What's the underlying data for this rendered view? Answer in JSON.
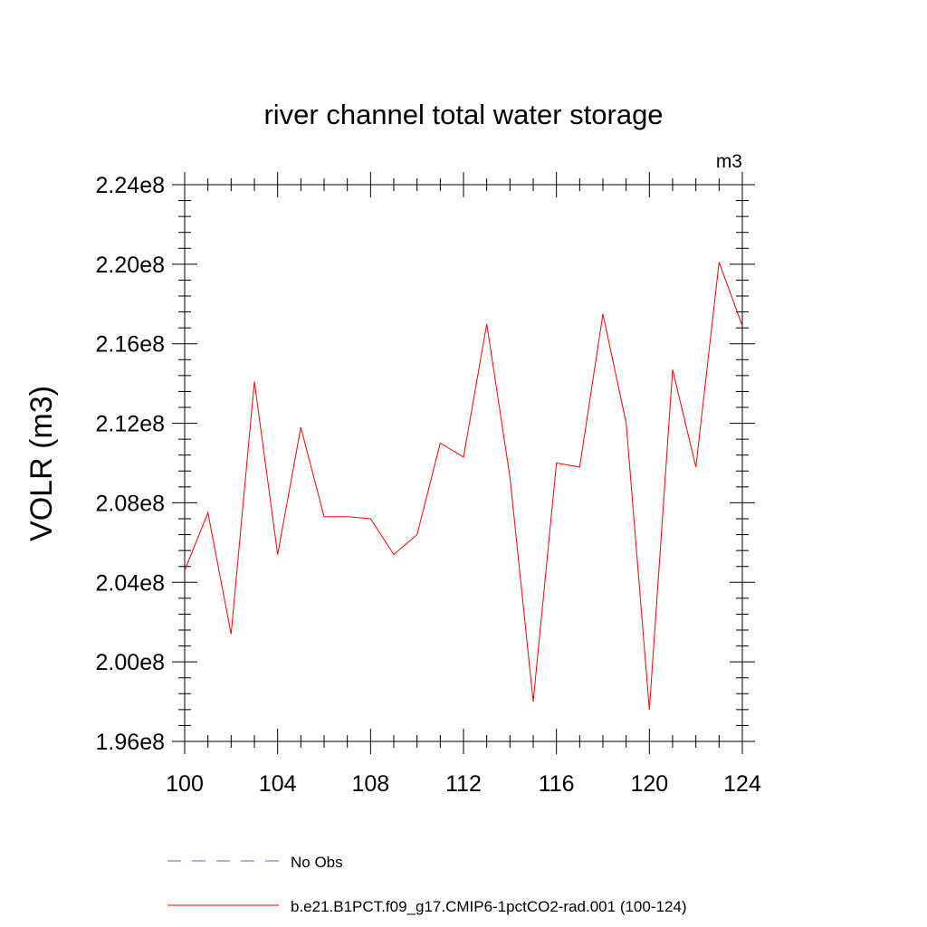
{
  "chart_data": {
    "type": "line",
    "title": "river channel total water storage",
    "units_label": "m3",
    "ylabel": "VOLR  (m3)",
    "xlabel": "",
    "xlim": [
      100,
      124
    ],
    "ylim": [
      196000000,
      224000000
    ],
    "x_ticks": [
      100,
      104,
      108,
      112,
      116,
      120,
      124
    ],
    "x_tick_labels": [
      "100",
      "104",
      "108",
      "112",
      "116",
      "120",
      "124"
    ],
    "y_ticks": [
      196000000,
      200000000,
      204000000,
      208000000,
      212000000,
      216000000,
      220000000,
      224000000
    ],
    "y_tick_labels": [
      "1.96e8",
      "2.00e8",
      "2.04e8",
      "2.08e8",
      "2.12e8",
      "2.16e8",
      "2.20e8",
      "2.24e8"
    ],
    "grid": false,
    "legend_position": "bottom",
    "series": [
      {
        "name": "b.e21.B1PCT.f09_g17.CMIP6-1pctCO2-rad.001 (100-124)",
        "color": "#ff0000",
        "style": "solid",
        "x": [
          100,
          101,
          102,
          103,
          104,
          105,
          106,
          107,
          108,
          109,
          110,
          111,
          112,
          113,
          114,
          115,
          116,
          117,
          118,
          119,
          120,
          121,
          122,
          123,
          124
        ],
        "values": [
          204600000,
          207500000,
          201400000,
          214100000,
          205400000,
          211800000,
          207300000,
          207300000,
          207200000,
          205400000,
          206400000,
          211000000,
          210300000,
          217000000,
          209300000,
          198000000,
          210000000,
          209800000,
          217500000,
          212000000,
          197600000,
          214700000,
          209800000,
          220100000,
          216900000
        ]
      }
    ],
    "legend": [
      {
        "label": "No Obs",
        "color": "#6a5acd",
        "style": "dashed"
      },
      {
        "label": "b.e21.B1PCT.f09_g17.CMIP6-1pctCO2-rad.001 (100-124)",
        "color": "#ff0000",
        "style": "solid"
      }
    ]
  }
}
